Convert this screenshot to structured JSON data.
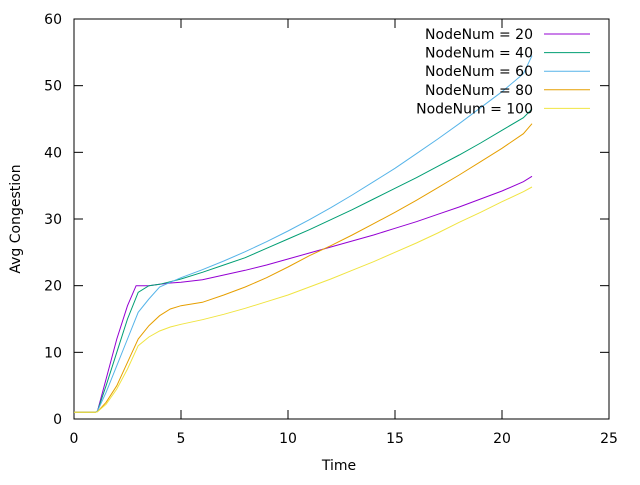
{
  "chart_data": {
    "type": "line",
    "xlabel": "Time",
    "ylabel": "Avg Congestion",
    "xlim": [
      0,
      25
    ],
    "ylim": [
      0,
      60
    ],
    "x_ticks": [
      0,
      5,
      10,
      15,
      20,
      25
    ],
    "y_ticks": [
      0,
      10,
      20,
      30,
      40,
      50,
      60
    ],
    "x_tick_labels": [
      "0",
      "5",
      "10",
      "15",
      "20",
      "25"
    ],
    "y_tick_labels": [
      "0",
      "10",
      "20",
      "30",
      "40",
      "50",
      "60"
    ],
    "grid": false,
    "legend_position": "top-right",
    "series": [
      {
        "name": "NodeNum = 20",
        "color": "#9400d3",
        "x": [
          0,
          1,
          1.1,
          1.5,
          2,
          2.5,
          2.9,
          3,
          3.5,
          4,
          4.5,
          5,
          6,
          7,
          8,
          9,
          10,
          11,
          12,
          13,
          14,
          15,
          16,
          17,
          18,
          19,
          20,
          21,
          21.4
        ],
        "y": [
          1,
          1,
          1.2,
          6,
          12,
          17,
          20,
          20,
          20,
          20.2,
          20.4,
          20.5,
          20.9,
          21.6,
          22.3,
          23.1,
          24,
          24.9,
          25.8,
          26.7,
          27.6,
          28.6,
          29.6,
          30.7,
          31.8,
          33,
          34.2,
          35.6,
          36.4
        ]
      },
      {
        "name": "NodeNum = 40",
        "color": "#009e73",
        "x": [
          0,
          1,
          1.1,
          1.5,
          2,
          2.5,
          3,
          3.5,
          4,
          4.5,
          5,
          6,
          7,
          8,
          9,
          10,
          11,
          12,
          13,
          14,
          15,
          16,
          17,
          18,
          19,
          20,
          21,
          21.4
        ],
        "y": [
          1,
          1,
          1.2,
          5,
          10,
          15,
          19,
          20,
          20.2,
          20.6,
          21,
          22,
          23.1,
          24.2,
          25.6,
          27,
          28.4,
          29.9,
          31.4,
          33,
          34.6,
          36.2,
          37.9,
          39.6,
          41.4,
          43.3,
          45.2,
          46.5
        ]
      },
      {
        "name": "NodeNum = 60",
        "color": "#56b4e9",
        "x": [
          0,
          1,
          1.1,
          1.5,
          2,
          2.5,
          3,
          3.5,
          4,
          4.5,
          5,
          6,
          7,
          8,
          9,
          10,
          11,
          12,
          13,
          14,
          15,
          16,
          17,
          18,
          19,
          20,
          21,
          21.4
        ],
        "y": [
          1,
          1,
          1.2,
          4,
          8,
          12,
          16,
          18,
          19.8,
          20.5,
          21.2,
          22.4,
          23.7,
          25.1,
          26.6,
          28.2,
          29.9,
          31.7,
          33.6,
          35.6,
          37.6,
          39.8,
          42,
          44.3,
          46.7,
          49.1,
          51.8,
          54.5
        ]
      },
      {
        "name": "NodeNum = 80",
        "color": "#e69f00",
        "x": [
          0,
          1,
          1.1,
          1.5,
          2,
          2.5,
          3,
          3.5,
          4,
          4.5,
          5,
          6,
          7,
          8,
          9,
          10,
          11,
          12,
          13,
          14,
          15,
          16,
          17,
          18,
          19,
          20,
          21,
          21.4
        ],
        "y": [
          1,
          1,
          1.1,
          2.5,
          5,
          8.5,
          12,
          14,
          15.5,
          16.5,
          17,
          17.5,
          18.6,
          19.8,
          21.2,
          22.8,
          24.5,
          26,
          27.6,
          29.3,
          31,
          32.8,
          34.7,
          36.6,
          38.6,
          40.6,
          42.8,
          44.3
        ]
      },
      {
        "name": "NodeNum = 100",
        "color": "#f0e442",
        "x": [
          0,
          1,
          1.1,
          1.5,
          2,
          2.5,
          3,
          3.5,
          4,
          4.5,
          5,
          6,
          7,
          8,
          9,
          10,
          11,
          12,
          13,
          14,
          15,
          16,
          17,
          18,
          19,
          20,
          21,
          21.4
        ],
        "y": [
          1,
          1,
          1.1,
          2.2,
          4.5,
          7.5,
          11,
          12.3,
          13.2,
          13.8,
          14.2,
          14.9,
          15.7,
          16.6,
          17.6,
          18.6,
          19.8,
          21,
          22.3,
          23.6,
          25,
          26.4,
          27.9,
          29.5,
          31,
          32.6,
          34.1,
          34.8
        ]
      }
    ]
  }
}
